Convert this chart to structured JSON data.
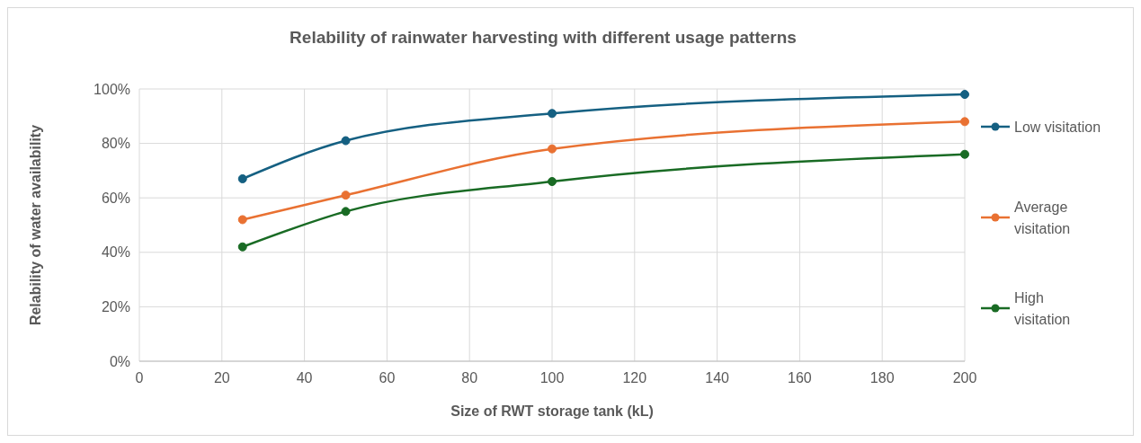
{
  "chart_data": {
    "type": "line",
    "title": "Relability of rainwater harvesting with different usage patterns",
    "xlabel": "Size of RWT storage tank (kL)",
    "ylabel": "Relability of water availability",
    "x": [
      25,
      50,
      100,
      200
    ],
    "series": [
      {
        "name": "Low visitation",
        "color": "#156082",
        "values": [
          67,
          81,
          91,
          98
        ]
      },
      {
        "name": "Average visitation",
        "color": "#e97132",
        "values": [
          52,
          61,
          78,
          88
        ]
      },
      {
        "name": "High visitation",
        "color": "#196b24",
        "values": [
          42,
          55,
          66,
          76
        ]
      }
    ],
    "xlim": [
      0,
      200
    ],
    "xticks": [
      0,
      20,
      40,
      60,
      80,
      100,
      120,
      140,
      160,
      180,
      200
    ],
    "ylim": [
      0,
      100
    ],
    "yticks": [
      {
        "value": 0,
        "label": "0%"
      },
      {
        "value": 20,
        "label": "20%"
      },
      {
        "value": 40,
        "label": "40%"
      },
      {
        "value": 60,
        "label": "60%"
      },
      {
        "value": 80,
        "label": "80%"
      },
      {
        "value": 100,
        "label": "100%"
      }
    ],
    "grid": true,
    "legend": "right",
    "marker": "circle",
    "line_style": "solid"
  }
}
